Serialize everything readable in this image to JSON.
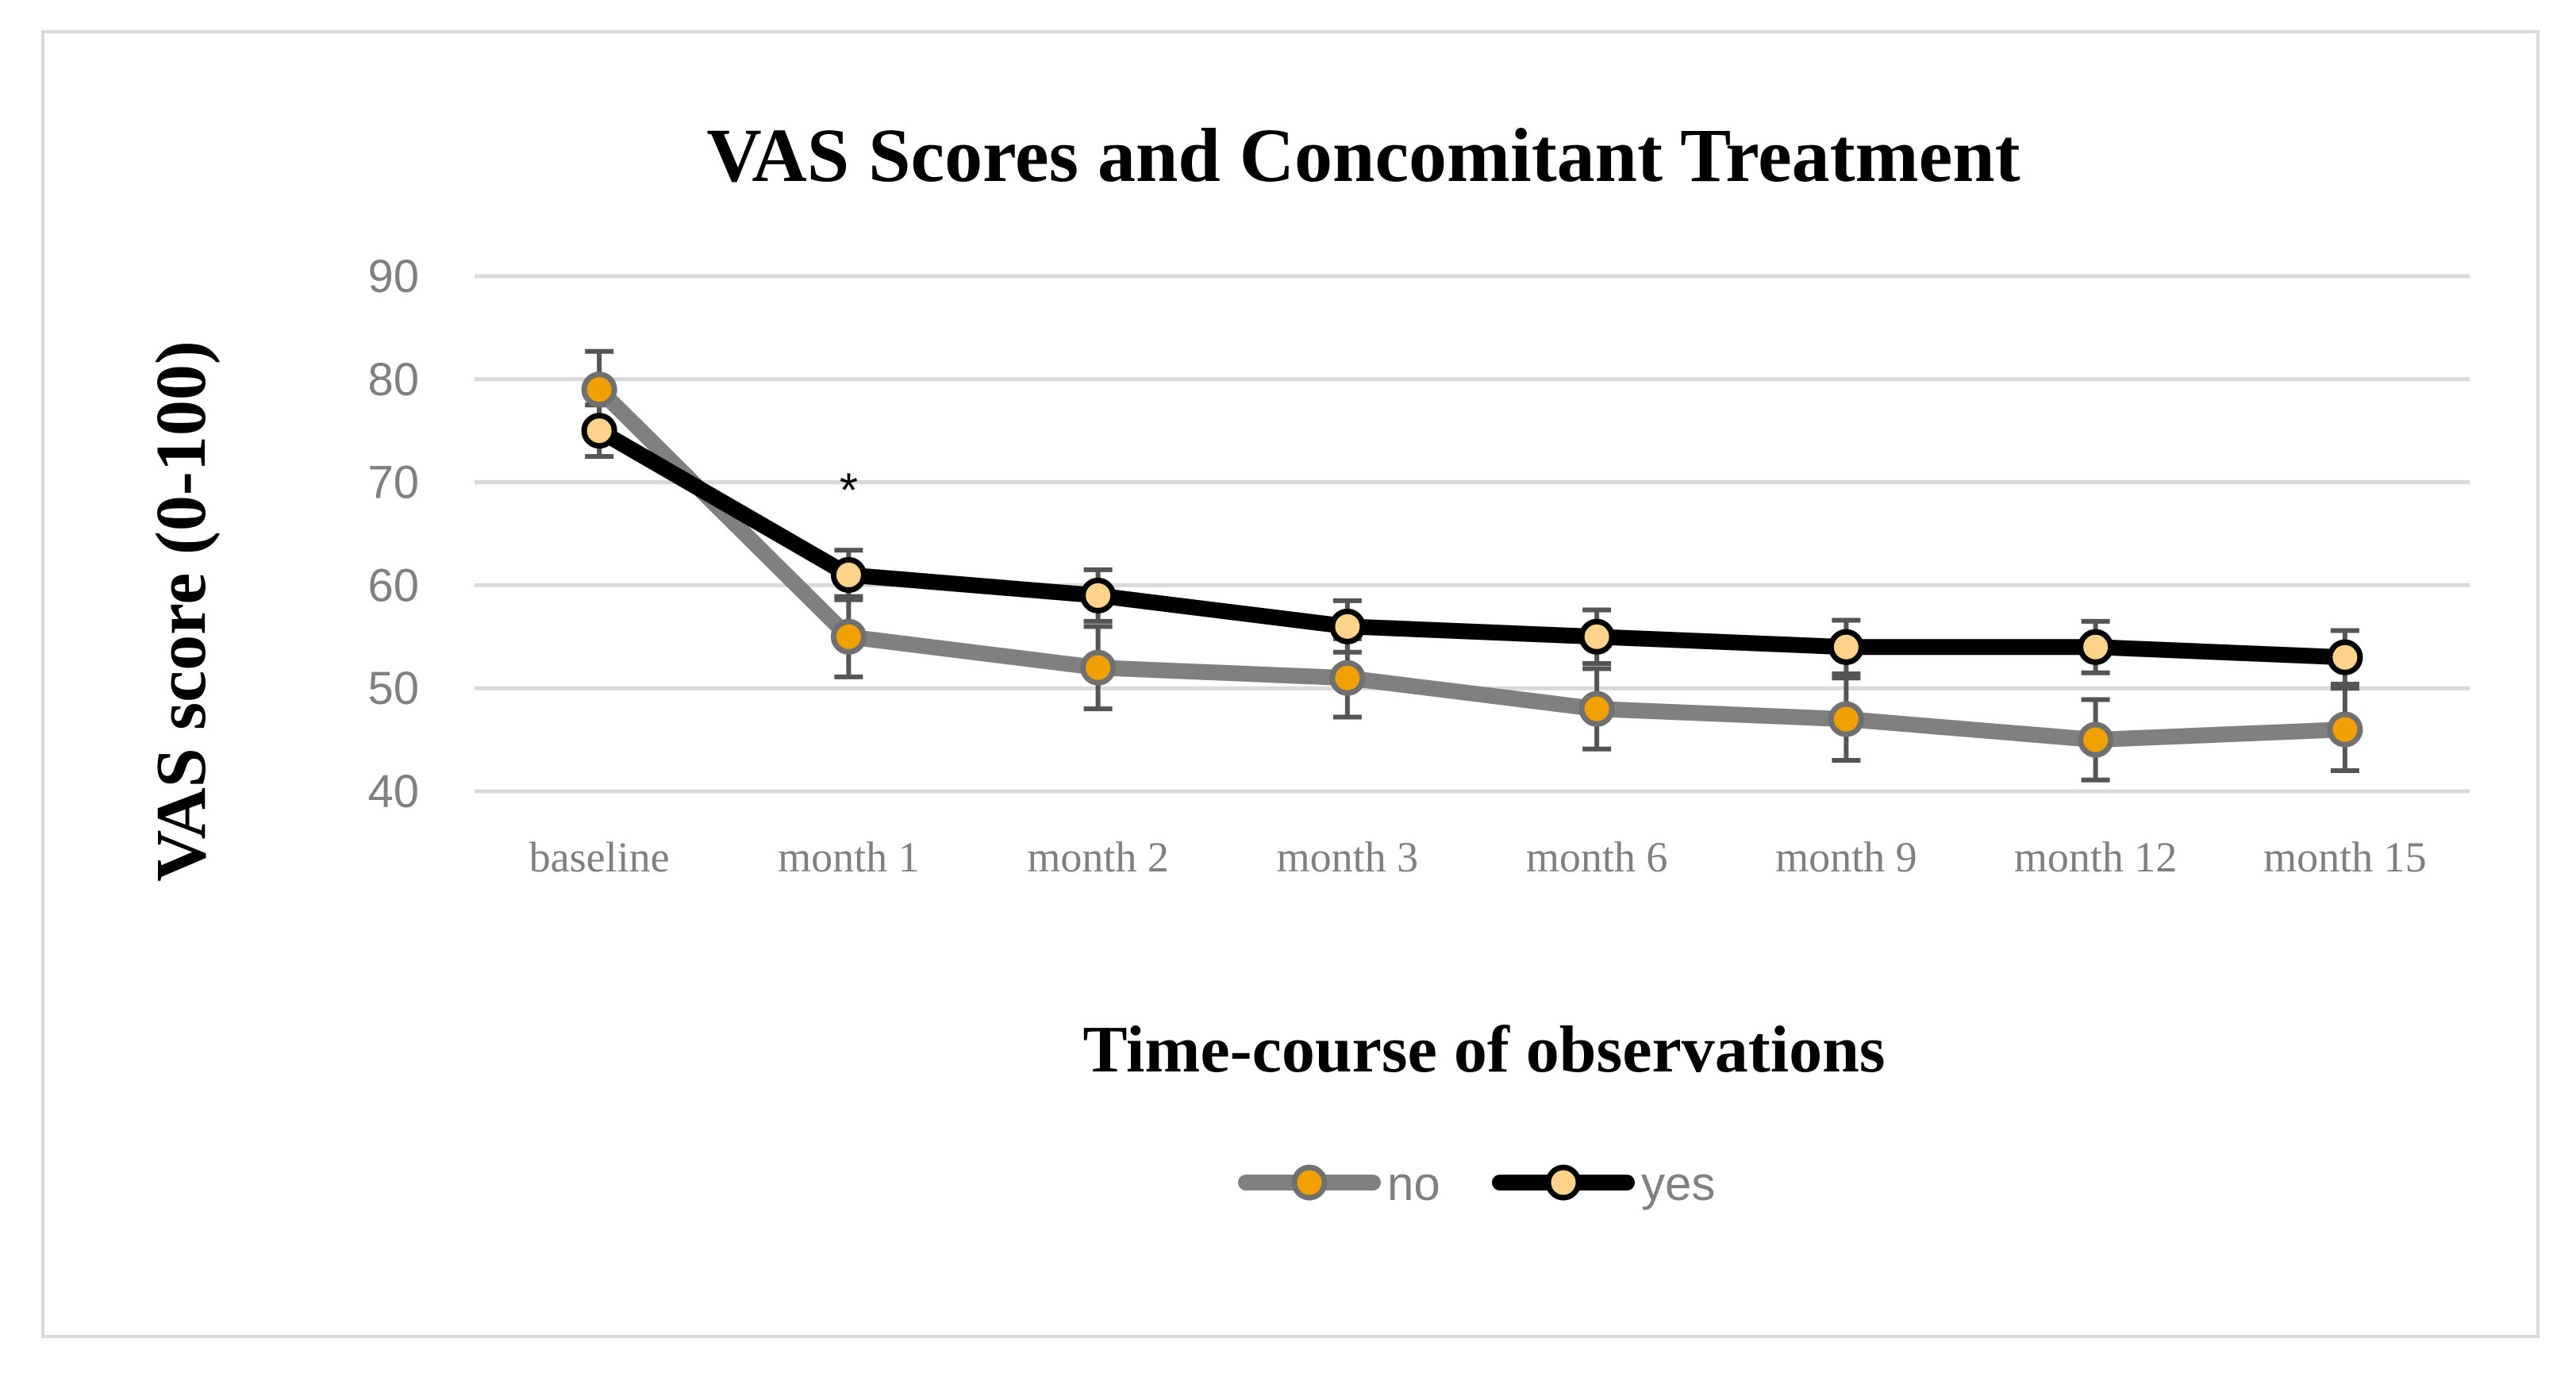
{
  "chart_data": {
    "type": "line",
    "title": "VAS Scores and Concomitant Treatment",
    "xlabel": "Time-course of observations",
    "ylabel": "VAS score (0-100)",
    "ylim": [
      40,
      90
    ],
    "yticks": [
      "40",
      "50",
      "60",
      "70",
      "80",
      "90"
    ],
    "grid": true,
    "legend_position": "bottom-center",
    "categories": [
      "baseline",
      "month 1",
      "month 2",
      "month 3",
      "month 6",
      "month 9",
      "month 12",
      "month 15"
    ],
    "series": [
      {
        "name": "no",
        "values": [
          79,
          55,
          52,
          51,
          48,
          47,
          45,
          46
        ],
        "error": [
          3.7,
          3.9,
          4,
          3.8,
          3.9,
          4,
          3.9,
          4
        ],
        "line_color": "#808080",
        "marker_fill": "#F0A000",
        "marker_edge": "#707070"
      },
      {
        "name": "yes",
        "values": [
          75,
          61,
          59,
          56,
          55,
          54,
          54,
          53
        ],
        "error": [
          2.5,
          2.4,
          2.5,
          2.5,
          2.6,
          2.6,
          2.5,
          2.6
        ],
        "line_color": "#000000",
        "marker_fill": "#FFD38A",
        "marker_edge": "#000000"
      }
    ],
    "annotations": [
      {
        "text": "*",
        "category": "month 1"
      }
    ],
    "colors": {
      "frame": "#D9D9D9",
      "grid": "#D9D9D9",
      "tick_text": "#808080",
      "errorbar": "#555555"
    }
  }
}
